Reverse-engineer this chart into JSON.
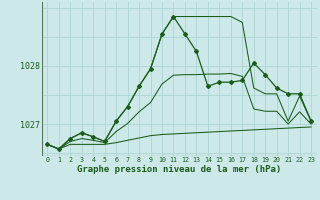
{
  "title": "Graphe pression niveau de la mer (hPa)",
  "bg_color": "#cce8e8",
  "grid_color": "#aed4d4",
  "line_color": "#1a5c1a",
  "x_ticks": [
    0,
    1,
    2,
    3,
    4,
    5,
    6,
    7,
    8,
    9,
    10,
    11,
    12,
    13,
    14,
    15,
    16,
    17,
    18,
    19,
    20,
    21,
    22,
    23
  ],
  "ylim": [
    1026.45,
    1029.1
  ],
  "ytick_positions": [
    1027,
    1028
  ],
  "main_series": [
    1026.65,
    1026.57,
    1026.75,
    1026.85,
    1026.78,
    1026.7,
    1027.05,
    1027.3,
    1027.65,
    1027.95,
    1028.55,
    1028.85,
    1028.55,
    1028.25,
    1027.65,
    1027.72,
    1027.72,
    1027.75,
    1028.05,
    1027.85,
    1027.62,
    1027.52,
    1027.52,
    1027.05
  ],
  "min_series": [
    1026.65,
    1026.57,
    1026.65,
    1026.65,
    1026.65,
    1026.65,
    1026.68,
    1026.72,
    1026.76,
    1026.8,
    1026.82,
    1026.83,
    1026.84,
    1026.85,
    1026.86,
    1026.87,
    1026.88,
    1026.89,
    1026.9,
    1026.91,
    1026.92,
    1026.93,
    1026.94,
    1026.95
  ],
  "max_series": [
    1026.65,
    1026.57,
    1026.75,
    1026.85,
    1026.78,
    1026.7,
    1027.05,
    1027.3,
    1027.65,
    1027.95,
    1028.55,
    1028.85,
    1028.85,
    1028.85,
    1028.85,
    1028.85,
    1028.85,
    1028.75,
    1027.62,
    1027.52,
    1027.52,
    1027.05,
    1027.48,
    1027.05
  ],
  "avg_series": [
    1026.65,
    1026.57,
    1026.7,
    1026.75,
    1026.72,
    1026.68,
    1026.87,
    1027.01,
    1027.21,
    1027.37,
    1027.69,
    1027.84,
    1027.85,
    1027.85,
    1027.86,
    1027.86,
    1027.87,
    1027.82,
    1027.26,
    1027.22,
    1027.22,
    1027.0,
    1027.21,
    1027.0
  ],
  "title_fontsize": 6.5
}
